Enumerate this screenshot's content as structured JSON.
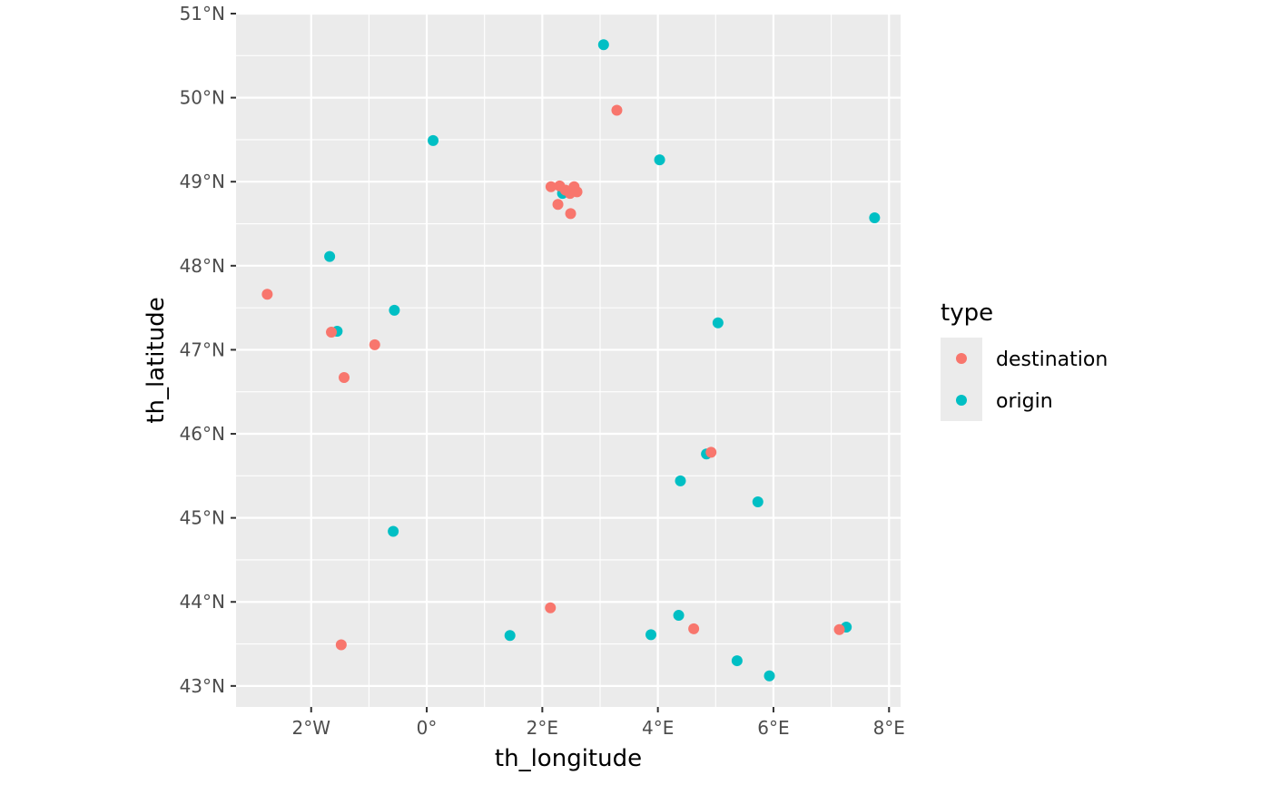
{
  "chart_data": {
    "type": "scatter",
    "title": "",
    "xlabel": "th_longitude",
    "ylabel": "th_latitude",
    "xlim": [
      -3.3,
      8.2
    ],
    "ylim": [
      42.75,
      51.0
    ],
    "grid": true,
    "x_ticks": [
      {
        "value": -2,
        "label": "2°W"
      },
      {
        "value": 0,
        "label": "0°"
      },
      {
        "value": 2,
        "label": "2°E"
      },
      {
        "value": 4,
        "label": "4°E"
      },
      {
        "value": 6,
        "label": "6°E"
      },
      {
        "value": 8,
        "label": "8°E"
      }
    ],
    "y_ticks": [
      {
        "value": 43,
        "label": "43°N"
      },
      {
        "value": 44,
        "label": "44°N"
      },
      {
        "value": 45,
        "label": "45°N"
      },
      {
        "value": 46,
        "label": "46°N"
      },
      {
        "value": 47,
        "label": "47°N"
      },
      {
        "value": 48,
        "label": "48°N"
      },
      {
        "value": 49,
        "label": "49°N"
      },
      {
        "value": 50,
        "label": "50°N"
      },
      {
        "value": 51,
        "label": "51°N"
      }
    ],
    "legend": {
      "title": "type",
      "position": "right"
    },
    "series": [
      {
        "name": "origin",
        "color": "#00BFC4",
        "points": [
          [
            3.06,
            50.63
          ],
          [
            0.11,
            49.49
          ],
          [
            4.03,
            49.26
          ],
          [
            7.75,
            48.57
          ],
          [
            -1.68,
            48.11
          ],
          [
            -0.56,
            47.47
          ],
          [
            -1.55,
            47.22
          ],
          [
            5.04,
            47.32
          ],
          [
            4.84,
            45.76
          ],
          [
            4.39,
            45.44
          ],
          [
            5.73,
            45.19
          ],
          [
            -0.58,
            44.84
          ],
          [
            1.44,
            43.6
          ],
          [
            3.88,
            43.61
          ],
          [
            4.36,
            43.84
          ],
          [
            5.37,
            43.3
          ],
          [
            5.93,
            43.12
          ],
          [
            7.26,
            43.7
          ],
          [
            2.35,
            48.86
          ]
        ]
      },
      {
        "name": "destination",
        "color": "#F8766D",
        "points": [
          [
            3.29,
            49.85
          ],
          [
            2.15,
            48.94
          ],
          [
            2.3,
            48.95
          ],
          [
            2.55,
            48.94
          ],
          [
            2.48,
            48.86
          ],
          [
            2.6,
            48.88
          ],
          [
            2.27,
            48.73
          ],
          [
            2.49,
            48.62
          ],
          [
            2.4,
            48.9
          ],
          [
            -2.76,
            47.66
          ],
          [
            -1.65,
            47.21
          ],
          [
            -0.9,
            47.06
          ],
          [
            -1.43,
            46.67
          ],
          [
            4.92,
            45.78
          ],
          [
            2.14,
            43.93
          ],
          [
            4.62,
            43.68
          ],
          [
            7.14,
            43.67
          ],
          [
            -1.48,
            43.49
          ]
        ]
      }
    ]
  }
}
